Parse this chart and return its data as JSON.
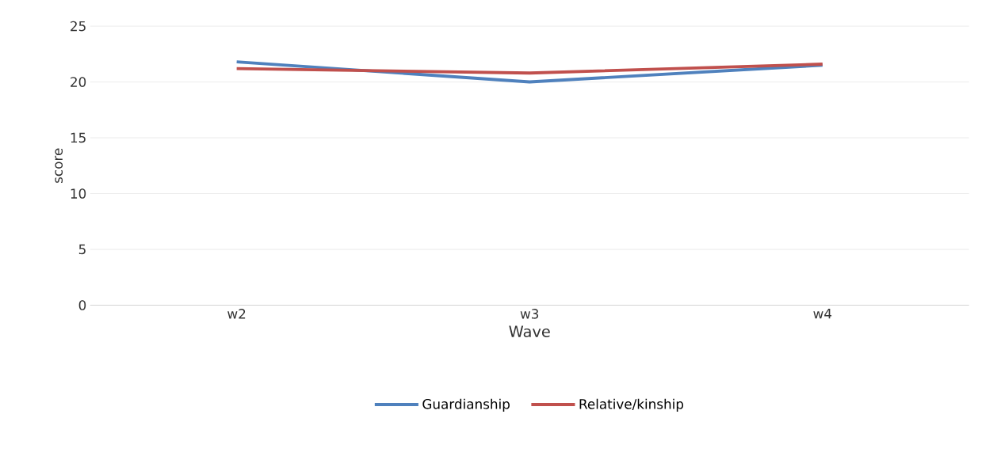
{
  "chart_data": {
    "type": "line",
    "xlabel": "Wave",
    "ylabel": "score",
    "categories": [
      "w2",
      "w3",
      "w4"
    ],
    "series": [
      {
        "name": "Guardianship",
        "color": "#4f81bd",
        "values": [
          21.8,
          20.0,
          21.5
        ]
      },
      {
        "name": "Relative/kinship",
        "color": "#c0504d",
        "values": [
          21.2,
          20.8,
          21.6
        ]
      }
    ],
    "ylim": [
      0,
      25
    ],
    "yticks": [
      0,
      5,
      10,
      15,
      20,
      25
    ],
    "grid": "y",
    "legend": "bottom",
    "marker": "none",
    "line_style": "solid"
  }
}
